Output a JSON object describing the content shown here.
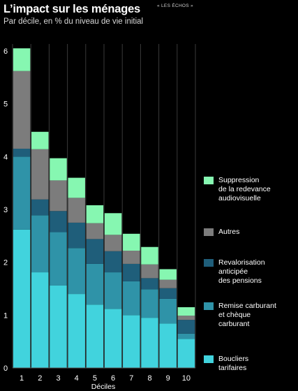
{
  "header": {
    "title": "L’impact sur les ménages",
    "source": "« LES ÉCHOS »",
    "subtitle": "Par décile, en % du niveau de vie initial"
  },
  "colors": {
    "background": "#000000",
    "boucliers": "#41d3dd",
    "remise": "#2f93a8",
    "revalorisation": "#1f5e7a",
    "autres": "#7c7c7c",
    "redevance": "#86f7b1",
    "gridline": "#3a3a3a"
  },
  "legend": [
    {
      "key": "redevance",
      "label": "Suppression\nde la redevance\naudiovisuelle"
    },
    {
      "key": "autres",
      "label": "Autres"
    },
    {
      "key": "revalorisation",
      "label": "Revalorisation\nanticipée\ndes pensions"
    },
    {
      "key": "remise",
      "label": "Remise carburant\net chèque\ncarburant"
    },
    {
      "key": "boucliers",
      "label": "Boucliers\ntarifaires"
    }
  ],
  "chart_data": {
    "type": "bar",
    "stacked": true,
    "xlabel": "Déciles",
    "ylabel": "",
    "ylim": [
      0,
      6
    ],
    "yticks": [
      "0",
      "1",
      "2",
      "3",
      "4",
      "5",
      "6"
    ],
    "categories": [
      "1",
      "2",
      "3",
      "4",
      "5",
      "6",
      "7",
      "8",
      "9",
      "10"
    ],
    "grid": "vertical",
    "legend_position": "right",
    "series": [
      {
        "name": "Boucliers tarifaires",
        "key": "boucliers",
        "values": [
          2.62,
          1.81,
          1.56,
          1.4,
          1.2,
          1.12,
          1.0,
          0.95,
          0.84,
          0.55
        ]
      },
      {
        "name": "Remise carburant et chèque carburant",
        "key": "remise",
        "values": [
          1.38,
          1.08,
          1.01,
          0.87,
          0.77,
          0.69,
          0.64,
          0.54,
          0.47,
          0.1
        ]
      },
      {
        "name": "Revalorisation anticipée des pensions",
        "key": "revalorisation",
        "values": [
          0.15,
          0.3,
          0.4,
          0.48,
          0.47,
          0.4,
          0.33,
          0.21,
          0.2,
          0.26
        ]
      },
      {
        "name": "Autres",
        "key": "autres",
        "values": [
          1.47,
          0.95,
          0.58,
          0.47,
          0.3,
          0.31,
          0.25,
          0.26,
          0.16,
          0.08
        ]
      },
      {
        "name": "Suppression de la redevance audiovisuelle",
        "key": "redevance",
        "values": [
          0.43,
          0.33,
          0.42,
          0.38,
          0.34,
          0.41,
          0.32,
          0.33,
          0.2,
          0.16
        ]
      }
    ]
  }
}
